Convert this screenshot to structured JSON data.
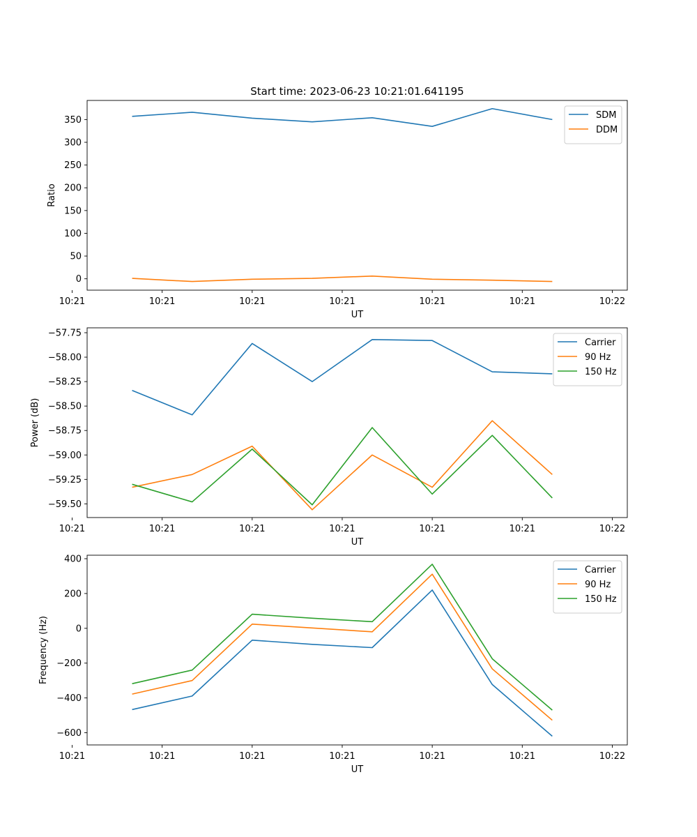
{
  "figure": {
    "title": "Start time: 2023-06-23 10:21:01.641195"
  },
  "chart_data": [
    {
      "type": "line",
      "title": "Start time: 2023-06-23 10:21:01.641195",
      "xlabel": "UT",
      "ylabel": "Ratio",
      "x": [
        1,
        2,
        3,
        4,
        5,
        6,
        7,
        8
      ],
      "xlim": [
        0.25,
        9.25
      ],
      "x_ticks": [
        0.0,
        1.5,
        3.0,
        4.5,
        6.0,
        7.5,
        9.0
      ],
      "x_tick_labels": [
        "10:21",
        "10:21",
        "10:21",
        "10:21",
        "10:21",
        "10:21",
        "10:22"
      ],
      "ylim": [
        -25,
        392
      ],
      "y_ticks": [
        0,
        50,
        100,
        150,
        200,
        250,
        300,
        350
      ],
      "y_tick_labels": [
        "0",
        "50",
        "100",
        "150",
        "200",
        "250",
        "300",
        "350"
      ],
      "legend_position": "top-right",
      "grid": false,
      "series": [
        {
          "name": "SDM",
          "color": "#1f77b4",
          "values": [
            357,
            366,
            353,
            345,
            354,
            335,
            374,
            350
          ]
        },
        {
          "name": "DDM",
          "color": "#ff7f0e",
          "values": [
            1,
            -6,
            -1,
            1,
            6,
            -1,
            -3,
            -6
          ]
        }
      ]
    },
    {
      "type": "line",
      "xlabel": "UT",
      "ylabel": "Power (dB)",
      "x": [
        1,
        2,
        3,
        4,
        5,
        6,
        7,
        8
      ],
      "xlim": [
        0.25,
        9.25
      ],
      "x_ticks": [
        0.0,
        1.5,
        3.0,
        4.5,
        6.0,
        7.5,
        9.0
      ],
      "x_tick_labels": [
        "10:21",
        "10:21",
        "10:21",
        "10:21",
        "10:21",
        "10:21",
        "10:22"
      ],
      "ylim": [
        -59.64,
        -57.7
      ],
      "y_ticks": [
        -57.75,
        -58.0,
        -58.25,
        -58.5,
        -58.75,
        -59.0,
        -59.25,
        -59.5
      ],
      "y_tick_labels": [
        "−57.75",
        "−58.00",
        "−58.25",
        "−58.50",
        "−58.75",
        "−59.00",
        "−59.25",
        "−59.50"
      ],
      "legend_position": "top-right",
      "grid": false,
      "series": [
        {
          "name": "Carrier",
          "color": "#1f77b4",
          "values": [
            -58.34,
            -58.59,
            -57.86,
            -58.25,
            -57.82,
            -57.83,
            -58.15,
            -58.17
          ]
        },
        {
          "name": "90 Hz",
          "color": "#ff7f0e",
          "values": [
            -59.33,
            -59.2,
            -58.91,
            -59.56,
            -59.0,
            -59.33,
            -58.65,
            -59.2
          ]
        },
        {
          "name": "150 Hz",
          "color": "#2ca02c",
          "values": [
            -59.3,
            -59.48,
            -58.94,
            -59.51,
            -58.72,
            -59.4,
            -58.8,
            -59.44
          ]
        }
      ]
    },
    {
      "type": "line",
      "xlabel": "UT",
      "ylabel": "Frequency (Hz)",
      "x": [
        1,
        2,
        3,
        4,
        5,
        6,
        7,
        8
      ],
      "xlim": [
        0.25,
        9.25
      ],
      "x_ticks": [
        0.0,
        1.5,
        3.0,
        4.5,
        6.0,
        7.5,
        9.0
      ],
      "x_tick_labels": [
        "10:21",
        "10:21",
        "10:21",
        "10:21",
        "10:21",
        "10:21",
        "10:22"
      ],
      "ylim": [
        -670,
        420
      ],
      "y_ticks": [
        -600,
        -400,
        -200,
        0,
        200,
        400
      ],
      "y_tick_labels": [
        "−600",
        "−400",
        "−200",
        "0",
        "200",
        "400"
      ],
      "legend_position": "top-right",
      "grid": false,
      "series": [
        {
          "name": "Carrier",
          "color": "#1f77b4",
          "values": [
            -467,
            -389,
            -68,
            -92,
            -111,
            220,
            -323,
            -620
          ]
        },
        {
          "name": "90 Hz",
          "color": "#ff7f0e",
          "values": [
            -378,
            -300,
            24,
            2,
            -20,
            311,
            -233,
            -528
          ]
        },
        {
          "name": "150 Hz",
          "color": "#2ca02c",
          "values": [
            -318,
            -240,
            81,
            58,
            38,
            368,
            -175,
            -470
          ]
        }
      ]
    }
  ]
}
